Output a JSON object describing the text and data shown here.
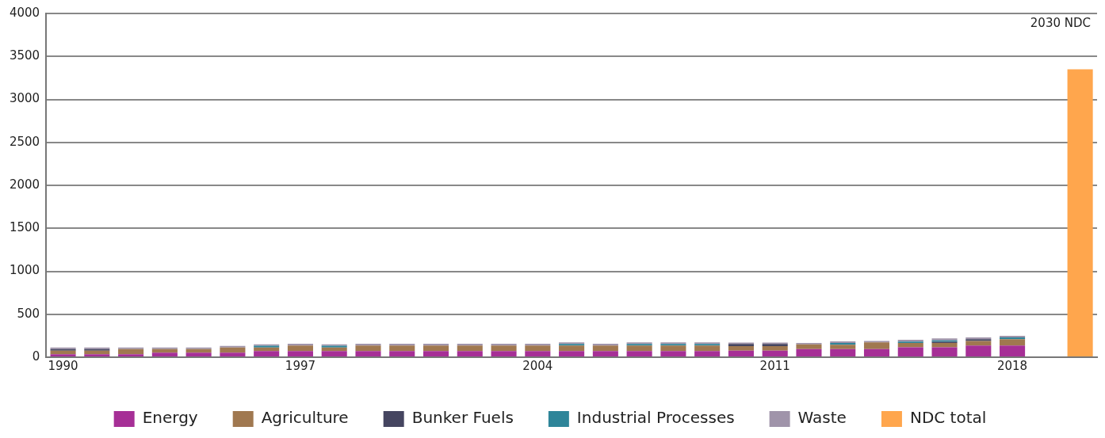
{
  "chart_data": {
    "type": "bar",
    "stacked": true,
    "categories": [
      "1990",
      null,
      null,
      null,
      null,
      null,
      null,
      "1997",
      null,
      null,
      null,
      null,
      null,
      null,
      "2004",
      null,
      null,
      null,
      null,
      null,
      null,
      "2011",
      null,
      null,
      null,
      null,
      null,
      null,
      "2018",
      null,
      null
    ],
    "series": [
      {
        "name": "Energy",
        "color": "#a62f96",
        "values": [
          35,
          35,
          35,
          54,
          54,
          54,
          72,
          72,
          72,
          72,
          72,
          72,
          72,
          72,
          72,
          72,
          72,
          72,
          72,
          72,
          75,
          75,
          95,
          95,
          95,
          115,
          115,
          135,
          135,
          null,
          null
        ]
      },
      {
        "name": "Agriculture",
        "color": "#a07850",
        "values": [
          40,
          40,
          59,
          40,
          40,
          59,
          41,
          63,
          41,
          63,
          63,
          63,
          63,
          63,
          63,
          63,
          63,
          63,
          63,
          63,
          55,
          55,
          55,
          50,
          77,
          52,
          50,
          55,
          75,
          null,
          null
        ]
      },
      {
        "name": "Bunker Fuels",
        "color": "#454560",
        "values": [
          20,
          20,
          0,
          0,
          0,
          0,
          0,
          0,
          0,
          0,
          0,
          0,
          0,
          0,
          0,
          0,
          0,
          0,
          0,
          0,
          25,
          25,
          0,
          0,
          0,
          0,
          15,
          20,
          0,
          null,
          null
        ]
      },
      {
        "name": "Industrial Processes",
        "color": "#2e8599",
        "values": [
          0,
          0,
          0,
          0,
          0,
          0,
          20,
          0,
          20,
          0,
          0,
          0,
          0,
          0,
          0,
          20,
          0,
          20,
          20,
          20,
          0,
          0,
          0,
          20,
          0,
          15,
          15,
          0,
          20,
          null,
          null
        ]
      },
      {
        "name": "Waste",
        "color": "#a094aa",
        "values": [
          18,
          18,
          19,
          19,
          19,
          19,
          17,
          22,
          17,
          22,
          22,
          22,
          22,
          22,
          22,
          18,
          22,
          18,
          18,
          18,
          15,
          15,
          15,
          20,
          18,
          20,
          25,
          20,
          20,
          null,
          null
        ]
      },
      {
        "name": "NDC total",
        "color": "#ffa64d",
        "values": [
          null,
          null,
          null,
          null,
          null,
          null,
          null,
          null,
          null,
          null,
          null,
          null,
          null,
          null,
          null,
          null,
          null,
          null,
          null,
          null,
          null,
          null,
          null,
          null,
          null,
          null,
          null,
          null,
          null,
          null,
          3350
        ]
      }
    ],
    "ylim": [
      0,
      4000
    ],
    "yticks": [
      0,
      500,
      1000,
      1500,
      2000,
      2500,
      3000,
      3500,
      4000
    ],
    "grid": "y",
    "legend": "bottom",
    "annotations": [
      "2030 NDC"
    ]
  }
}
